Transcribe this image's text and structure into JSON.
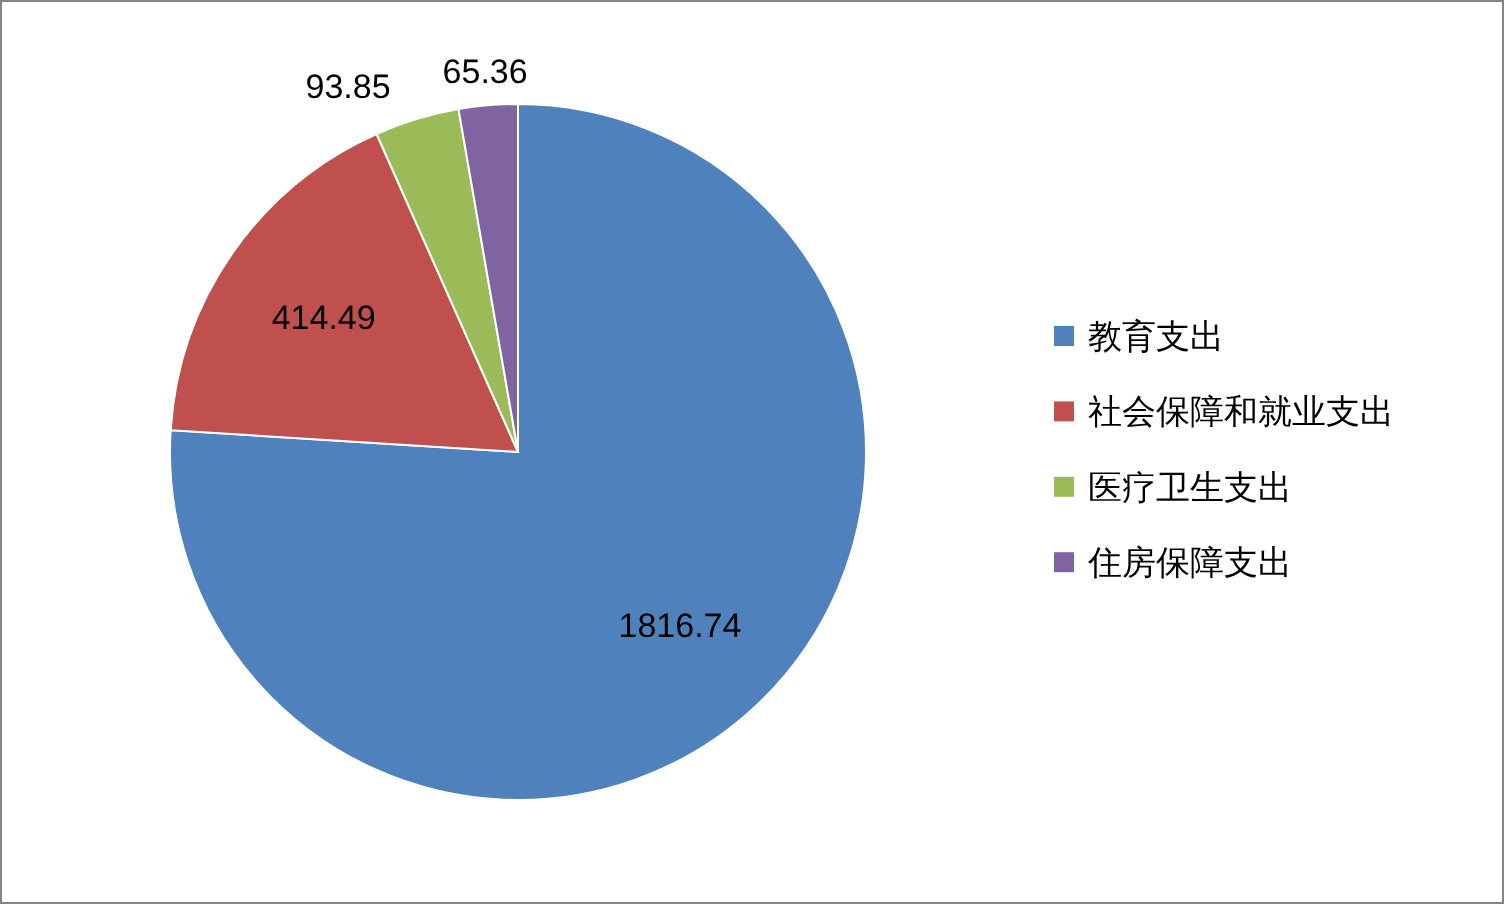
{
  "chart_data": {
    "type": "pie",
    "categories": [
      "教育支出",
      "社会保障和就业支出",
      "医疗卫生支出",
      "住房保障支出"
    ],
    "values": [
      1816.74,
      414.49,
      93.85,
      65.36
    ],
    "colors": [
      "#4f81bd",
      "#c0504d",
      "#9bbb59",
      "#8064a2"
    ],
    "data_labels": true,
    "legend": "right"
  }
}
